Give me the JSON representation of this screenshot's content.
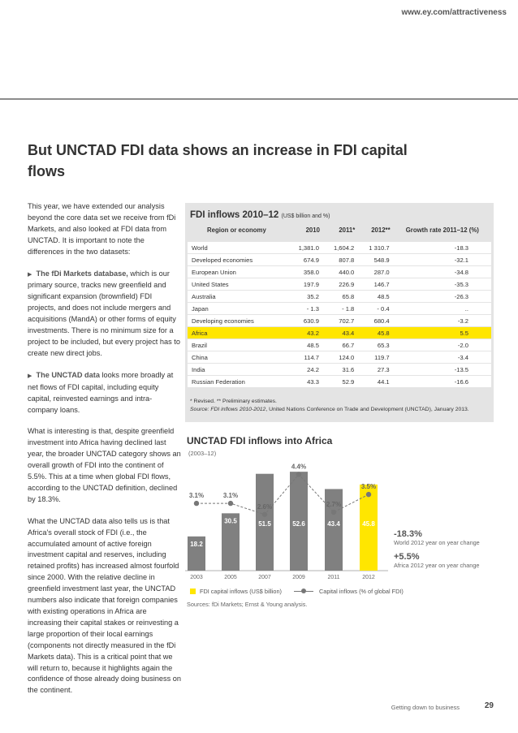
{
  "header": {
    "url": "www.ey.com/attractiveness"
  },
  "title": "But UNCTAD FDI data shows an increase in FDI capital flows",
  "body": {
    "p1": "This year, we have extended our analysis beyond the core data set we receive from fDi Markets, and also looked at FDI data from UNCTAD. It is important to note the differences in the two datasets:",
    "p2_bold": "The fDi Markets database,",
    "p2_rest": " which is our primary source, tracks new greenfield and significant expansion (brownfield) FDI projects, and does not include mergers and acquisitions (MandA) or other forms of equity investments. There is no minimum size for a project to be included, but every project has to create new direct jobs.",
    "p3_bold": "The UNCTAD data",
    "p3_rest": " looks more broadly at net flows of FDI capital, including equity capital, reinvested earnings and intra-company loans.",
    "p4": "What is interesting is that, despite greenfield investment into Africa having declined last year, the broader UNCTAD category shows an overall growth of FDI into the continent of 5.5%. This at a time when global FDI flows, according to the UNCTAD definition, declined by 18.3%.",
    "p5": "What the UNCTAD data also tells us is that Africa's overall stock of FDI (i.e., the accumulated amount of active foreign investment capital and reserves, including retained profits) has increased almost fourfold since 2000. With the relative decline in greenfield investment last year, the UNCTAD numbers also indicate that foreign companies with existing operations in Africa are increasing their capital stakes or reinvesting a large proportion of their local earnings (components not directly measured in the fDi Markets data). This is a critical point that we will return to, because it highlights again the confidence of those already doing business on the continent."
  },
  "table": {
    "title": "FDI inflows 2010–12",
    "unit": "(US$ billion and %)",
    "headers": [
      "Region or economy",
      "2010",
      "2011*",
      "2012**",
      "Growth rate 2011–12 (%)"
    ],
    "rows": [
      {
        "name": "World",
        "v2010": "1,381.0",
        "v2011": "1,604.2",
        "v2012": "1 310.7",
        "growth": "-18.3"
      },
      {
        "name": "Developed economies",
        "v2010": "674.9",
        "v2011": "807.8",
        "v2012": "548.9",
        "growth": "-32.1"
      },
      {
        "name": "European Union",
        "v2010": "358.0",
        "v2011": "440.0",
        "v2012": "287.0",
        "growth": "-34.8"
      },
      {
        "name": "United States",
        "v2010": "197.9",
        "v2011": "226.9",
        "v2012": "146.7",
        "growth": "-35.3"
      },
      {
        "name": "Australia",
        "v2010": "35.2",
        "v2011": "65.8",
        "v2012": "48.5",
        "growth": "-26.3"
      },
      {
        "name": "Japan",
        "v2010": "- 1.3",
        "v2011": "- 1.8",
        "v2012": "- 0.4",
        "growth": ".."
      },
      {
        "name": "Developing economies",
        "v2010": "630.9",
        "v2011": "702.7",
        "v2012": "680.4",
        "growth": "-3.2"
      },
      {
        "name": "Africa",
        "v2010": "43.2",
        "v2011": "43.4",
        "v2012": "45.8",
        "growth": "5.5"
      },
      {
        "name": "Brazil",
        "v2010": "48.5",
        "v2011": "66.7",
        "v2012": "65.3",
        "growth": "-2.0"
      },
      {
        "name": "China",
        "v2010": "114.7",
        "v2011": "124.0",
        "v2012": "119.7",
        "growth": "-3.4"
      },
      {
        "name": "India",
        "v2010": "24.2",
        "v2011": "31.6",
        "v2012": "27.3",
        "growth": "-13.5"
      },
      {
        "name": "Russian Federation",
        "v2010": "43.3",
        "v2011": "52.9",
        "v2012": "44.1",
        "growth": "-16.6"
      }
    ],
    "note1": "* Revised. ** Preliminary estimates.",
    "note2_label": "Source:",
    "note2_italic": "FDI inflows 2010-2012",
    "note2_rest": ", United Nations Conference on Trade and Development (UNCTAD), January 2013."
  },
  "chart_data": {
    "type": "bar",
    "title": "UNCTAD FDI inflows into Africa",
    "subtitle": "(2003–12)",
    "categories": [
      "2003",
      "2005",
      "2007",
      "2009",
      "2011",
      "2012"
    ],
    "series": [
      {
        "name": "FDI capital inflows (US$ billion)",
        "values": [
          18.2,
          30.5,
          51.5,
          52.6,
          43.4,
          45.8
        ],
        "labels": [
          "18.2",
          "30.5",
          "51.5",
          "52.6",
          "43.4",
          "45.8"
        ]
      },
      {
        "name": "Capital inflows (% of global FDI)",
        "values": [
          3.1,
          3.1,
          2.6,
          4.4,
          2.7,
          3.5
        ],
        "labels": [
          "3.1%",
          "3.1%",
          "2.6%",
          "4.4%",
          "2.7%",
          "3.5%"
        ]
      }
    ],
    "bar_color": "#808080",
    "highlight_color": "#ffe600",
    "line_color": "#777777",
    "grid": false
  },
  "stats": {
    "s1_value": "-18.3%",
    "s1_label": "World 2012 year on year change",
    "s2_value": "+5.5%",
    "s2_label": "Africa 2012 year on year change"
  },
  "legend": {
    "item1": "FDI capital inflows (US$ billion)",
    "item2": "Capital inflows (% of global FDI)"
  },
  "sources": "Sources: fDi Markets; Ernst & Young analysis.",
  "footer": {
    "section": "Getting down to business",
    "page": "29"
  }
}
